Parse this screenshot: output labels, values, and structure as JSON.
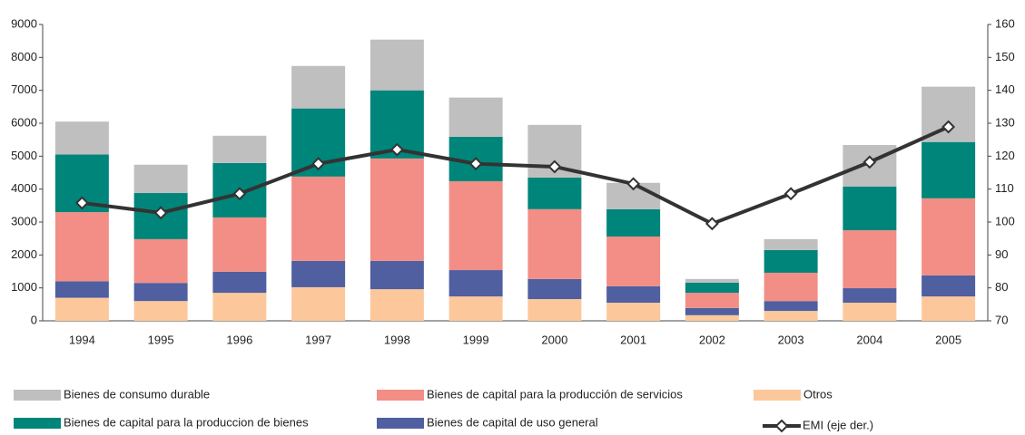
{
  "chart_data": {
    "type": "bar",
    "stacked": true,
    "categories": [
      "1994",
      "1995",
      "1996",
      "1997",
      "1998",
      "1999",
      "2000",
      "2001",
      "2002",
      "2003",
      "2004",
      "2005"
    ],
    "series": [
      {
        "name": "Bienes de consumo durable",
        "color": "#bfbfbf",
        "values": [
          1000,
          860,
          830,
          1290,
          1540,
          1190,
          1600,
          800,
          110,
          330,
          1260,
          1680
        ]
      },
      {
        "name": "Bienes de capital para la producción de servicios",
        "color": "#f28e86",
        "values": [
          2100,
          1330,
          1650,
          2560,
          3110,
          2700,
          2120,
          1510,
          460,
          860,
          1760,
          2340
        ]
      },
      {
        "name": "Otros",
        "color": "#fcc89b",
        "values": [
          700,
          600,
          850,
          1020,
          960,
          740,
          660,
          550,
          170,
          300,
          550,
          740
        ]
      },
      {
        "name": "Bienes de capital para la produccion de bienes",
        "color": "#00857a",
        "values": [
          1750,
          1400,
          1650,
          2070,
          2070,
          1350,
          960,
          830,
          310,
          690,
          1330,
          1710
        ]
      },
      {
        "name": "Bienes de capital de uso general",
        "color": "#4f5fa0",
        "values": [
          500,
          550,
          640,
          800,
          860,
          800,
          610,
          500,
          220,
          300,
          440,
          640
        ]
      },
      {
        "name": "EMI (eje der.)",
        "color": "#333333",
        "type": "line",
        "axis": "y2",
        "values": [
          105.8,
          102.8,
          108.6,
          117.7,
          122,
          117.7,
          116.8,
          111.6,
          99.5,
          108.6,
          118.2,
          128.9
        ]
      }
    ],
    "ylim": [
      0,
      9000
    ],
    "yticks": [
      0,
      1000,
      2000,
      3000,
      4000,
      5000,
      6000,
      7000,
      8000,
      9000
    ],
    "y2lim": [
      70,
      160
    ],
    "y2ticks": [
      70,
      80,
      90,
      100,
      110,
      120,
      130,
      140,
      150,
      160
    ],
    "grid": false
  }
}
